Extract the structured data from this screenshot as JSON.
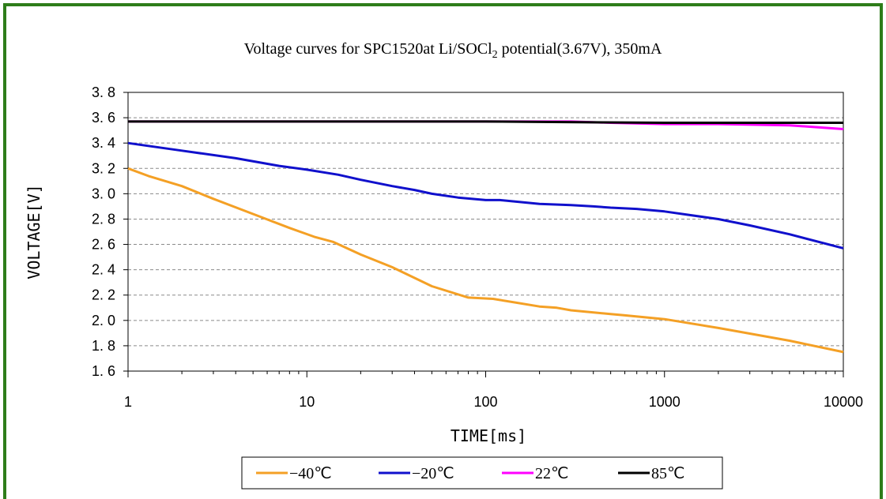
{
  "chart_data": {
    "type": "line",
    "title": {
      "main": "Voltage curves for SPC1520at Li/SOCl",
      "subscript": "2",
      "rest": " potential(3.67V), 350mA"
    },
    "xlabel": "TIME[ms]",
    "ylabel": "VOLTAGE[V]",
    "xscale": "log",
    "xlim": [
      1,
      10000
    ],
    "ylim": [
      1.6,
      3.8
    ],
    "x_ticks": [
      1,
      10,
      100,
      1000,
      10000
    ],
    "x_tick_labels": [
      "1",
      "10",
      "100",
      "1000",
      "10000"
    ],
    "y_ticks": [
      1.6,
      1.8,
      2.0,
      2.2,
      2.4,
      2.6,
      2.8,
      3.0,
      3.2,
      3.4,
      3.6,
      3.8
    ],
    "y_tick_labels": [
      "1. 6",
      "1. 8",
      "2. 0",
      "2. 2",
      "2. 4",
      "2. 6",
      "2. 8",
      "3. 0",
      "3. 2",
      "3. 4",
      "3. 6",
      "3. 8"
    ],
    "grid": "horizontal-dashed",
    "legend_position": "bottom",
    "series": [
      {
        "name": "−40℃",
        "color": "#f4a025",
        "x": [
          1,
          1.3,
          2,
          3,
          5,
          8,
          11,
          14,
          20,
          30,
          50,
          80,
          110,
          200,
          250,
          300,
          500,
          600,
          1000,
          2000,
          5000,
          10000
        ],
        "y": [
          3.2,
          3.14,
          3.06,
          2.96,
          2.84,
          2.73,
          2.66,
          2.62,
          2.52,
          2.42,
          2.27,
          2.18,
          2.17,
          2.11,
          2.1,
          2.08,
          2.05,
          2.04,
          2.01,
          1.94,
          1.84,
          1.75
        ]
      },
      {
        "name": "−20℃",
        "color": "#1010cc",
        "x": [
          1,
          2,
          4,
          7,
          10,
          15,
          20,
          30,
          40,
          50,
          70,
          100,
          120,
          200,
          300,
          400,
          500,
          700,
          1000,
          2000,
          3000,
          5000,
          10000
        ],
        "y": [
          3.4,
          3.34,
          3.28,
          3.22,
          3.19,
          3.15,
          3.11,
          3.06,
          3.03,
          3.0,
          2.97,
          2.95,
          2.95,
          2.92,
          2.91,
          2.9,
          2.89,
          2.88,
          2.86,
          2.8,
          2.75,
          2.68,
          2.57
        ]
      },
      {
        "name": "22℃",
        "color": "#ff00ff",
        "x": [
          1,
          100,
          300,
          500,
          1000,
          2000,
          5000,
          10000
        ],
        "y": [
          3.57,
          3.57,
          3.57,
          3.56,
          3.55,
          3.55,
          3.54,
          3.51
        ]
      },
      {
        "name": "85℃",
        "color": "#000000",
        "x": [
          1,
          10,
          100,
          1000,
          10000
        ],
        "y": [
          3.57,
          3.57,
          3.57,
          3.56,
          3.56
        ]
      }
    ]
  }
}
